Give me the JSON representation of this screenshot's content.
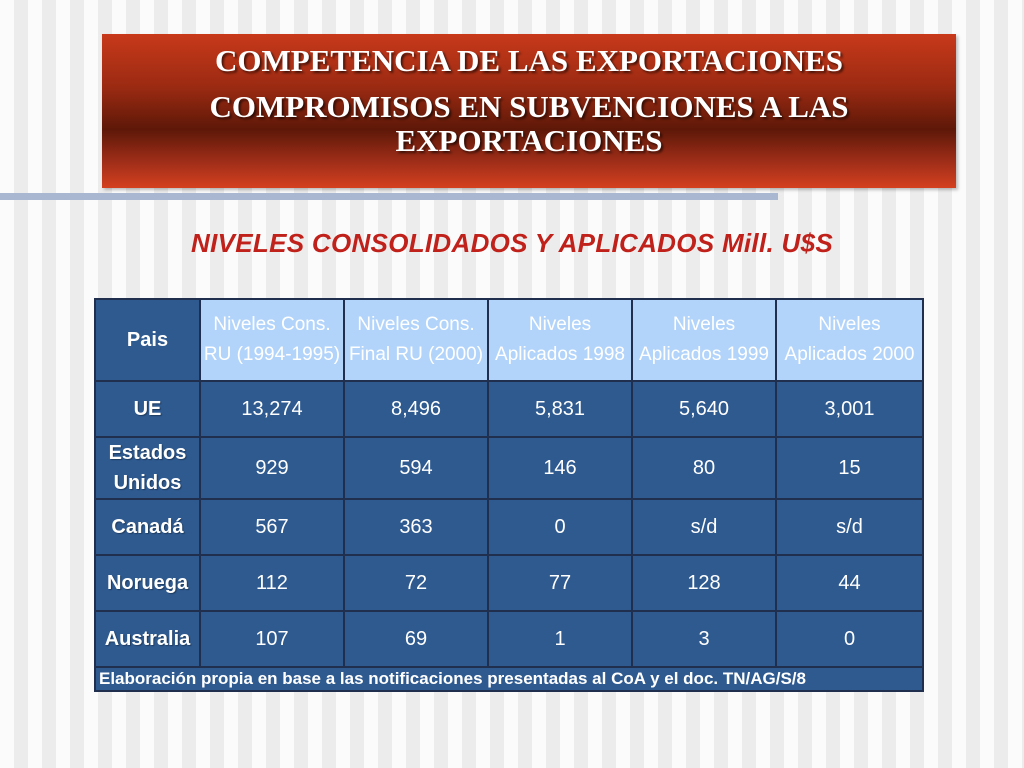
{
  "title": {
    "line1": "COMPETENCIA DE LAS EXPORTACIONES",
    "line2": "COMPROMISOS EN SUBVENCIONES A LAS EXPORTACIONES"
  },
  "subtitle": "NIVELES CONSOLIDADOS Y APLICADOS Mill. U$S",
  "table": {
    "headers": [
      "Pais",
      "Niveles Cons.    RU (1994-1995)",
      "Niveles Cons.   Final RU (2000)",
      "Niveles Aplicados 1998",
      "Niveles Aplicados 1999",
      "Niveles Aplicados 2000"
    ],
    "rows": [
      {
        "country": "UE",
        "values": [
          "13,274",
          "8,496",
          "5,831",
          "5,640",
          "3,001"
        ]
      },
      {
        "country": "Estados Unidos",
        "values": [
          "929",
          "594",
          "146",
          "80",
          "15"
        ]
      },
      {
        "country": "Canadá",
        "values": [
          "567",
          "363",
          "0",
          "s/d",
          "s/d"
        ]
      },
      {
        "country": "Noruega",
        "values": [
          "112",
          "72",
          "77",
          "128",
          "44"
        ]
      },
      {
        "country": "Australia",
        "values": [
          "107",
          "69",
          "1",
          "3",
          "0"
        ]
      }
    ],
    "footnote": "Elaboración propia en base a las notificaciones presentadas al CoA y el doc. TN/AG/S/8"
  }
}
